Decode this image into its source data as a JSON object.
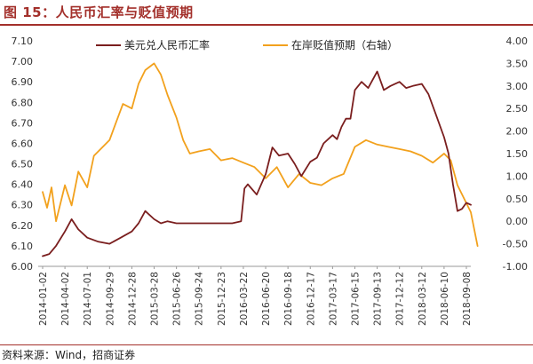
{
  "header": {
    "title": "图 15：人民币汇率与贬值预期"
  },
  "footer": {
    "source": "资料来源：Wind，招商证券"
  },
  "chart_data": {
    "type": "line",
    "title": "",
    "grid": false,
    "legend_position": "top",
    "y_left": {
      "min": 6.0,
      "max": 7.1,
      "ticks": [
        "6.00",
        "6.10",
        "6.20",
        "6.30",
        "6.40",
        "6.50",
        "6.60",
        "6.70",
        "6.80",
        "6.90",
        "7.00",
        "7.10"
      ]
    },
    "y_right": {
      "min": -1.0,
      "max": 4.0,
      "ticks": [
        "-1.00",
        "-0.50",
        "0.00",
        "0.50",
        "1.00",
        "1.50",
        "2.00",
        "2.50",
        "3.00",
        "3.50",
        "4.00"
      ]
    },
    "x_ticks": [
      "2014-01-02",
      "2014-04-02",
      "2014-07-01",
      "2014-09-29",
      "2014-12-28",
      "2015-03-28",
      "2015-06-26",
      "2015-09-24",
      "2015-12-23",
      "2016-03-22",
      "2016-06-20",
      "2016-09-18",
      "2016-12-17",
      "2017-03-17",
      "2017-06-15",
      "2017-09-13",
      "2017-12-12",
      "2018-03-12",
      "2018-06-10",
      "2018-09-08"
    ],
    "colors": {
      "usdcny": "#7a1e1e",
      "expectation": "#f2a11d"
    },
    "series": [
      {
        "name": "美元兑人民币汇率",
        "axis": "left",
        "x": [
          0,
          0.3,
          0.6,
          1,
          1.3,
          1.6,
          2,
          2.5,
          3,
          3.5,
          4,
          4.3,
          4.6,
          5,
          5.3,
          5.6,
          6,
          6.3,
          6.6,
          7,
          7.5,
          8,
          8.5,
          8.9,
          9.05,
          9.2,
          9.6,
          10,
          10.3,
          10.6,
          11,
          11.3,
          11.6,
          12,
          12.3,
          12.6,
          13,
          13.2,
          13.4,
          13.6,
          13.8,
          14,
          14.3,
          14.6,
          15,
          15.3,
          15.6,
          16,
          16.3,
          16.6,
          17,
          17.3,
          17.6,
          18,
          18.2,
          18.4,
          18.6,
          18.8,
          19,
          19.2
        ],
        "values": [
          6.05,
          6.06,
          6.1,
          6.17,
          6.23,
          6.18,
          6.14,
          6.12,
          6.11,
          6.14,
          6.17,
          6.21,
          6.27,
          6.23,
          6.21,
          6.22,
          6.21,
          6.21,
          6.21,
          6.21,
          6.21,
          6.21,
          6.21,
          6.22,
          6.38,
          6.4,
          6.35,
          6.45,
          6.58,
          6.54,
          6.55,
          6.5,
          6.44,
          6.51,
          6.53,
          6.6,
          6.64,
          6.62,
          6.68,
          6.72,
          6.72,
          6.86,
          6.9,
          6.87,
          6.95,
          6.86,
          6.88,
          6.9,
          6.87,
          6.88,
          6.89,
          6.84,
          6.75,
          6.63,
          6.55,
          6.4,
          6.27,
          6.28,
          6.31,
          6.3
        ]
      },
      {
        "name": "在岸贬值预期（右轴）",
        "axis": "right",
        "x": [
          0,
          0.2,
          0.4,
          0.6,
          1,
          1.3,
          1.6,
          2,
          2.3,
          2.6,
          3,
          3.3,
          3.6,
          4,
          4.3,
          4.6,
          5,
          5.3,
          5.6,
          6,
          6.3,
          6.6,
          7,
          7.5,
          8,
          8.5,
          9,
          9.5,
          10,
          10.5,
          11,
          11.5,
          12,
          12.5,
          13,
          13.5,
          14,
          14.5,
          15,
          15.5,
          16,
          16.5,
          17,
          17.5,
          18,
          18.3,
          18.6,
          19,
          19.2,
          19.5
        ],
        "values": [
          0.65,
          0.3,
          0.75,
          0.0,
          0.8,
          0.35,
          1.1,
          0.75,
          1.45,
          1.6,
          1.8,
          2.2,
          2.6,
          2.5,
          3.05,
          3.35,
          3.5,
          3.25,
          2.8,
          2.3,
          1.8,
          1.5,
          1.55,
          1.6,
          1.35,
          1.4,
          1.3,
          1.2,
          0.95,
          1.2,
          0.75,
          1.05,
          0.85,
          0.8,
          0.95,
          1.05,
          1.65,
          1.8,
          1.7,
          1.65,
          1.6,
          1.55,
          1.45,
          1.3,
          1.5,
          1.35,
          0.8,
          0.4,
          0.2,
          -0.55
        ]
      }
    ]
  }
}
